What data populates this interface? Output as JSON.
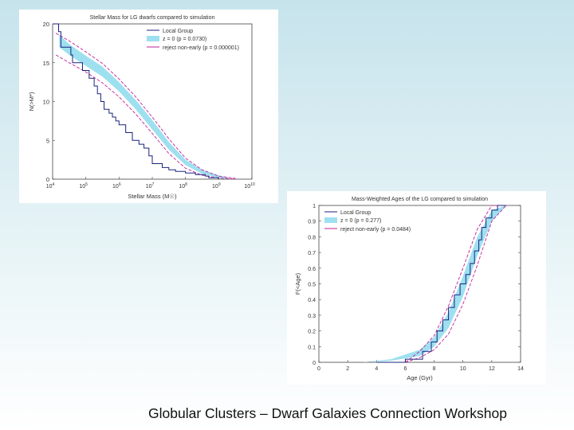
{
  "footer": "Globular Clusters – Dwarf Galaxies Connection Workshop",
  "colors": {
    "local_group": "#1a237e",
    "band": "#9ee0f0",
    "reject": "#c0209a",
    "axis": "#444444"
  },
  "chart_data": [
    {
      "type": "line",
      "title": "Stellar Mass for LG dwarfs compared to simulation",
      "xlabel": "Stellar Mass (M☉)",
      "ylabel": "N(>M*)",
      "x_scale": "log",
      "xlim": [
        10000,
        10000000000
      ],
      "ylim": [
        0,
        20
      ],
      "xticks": [
        4,
        5,
        6,
        7,
        8,
        9,
        10
      ],
      "yticks": [
        0,
        5,
        10,
        15,
        20
      ],
      "legend": {
        "placement": "top-right",
        "entries": [
          "Local Group",
          "z = 0 (p = 0.0730)",
          "reject non-early (p = 0.000001)"
        ]
      },
      "series": [
        {
          "name": "Local Group",
          "log10_x": [
            4.0,
            4.18,
            4.25,
            4.55,
            4.6,
            4.9,
            5.1,
            5.25,
            5.35,
            5.45,
            5.55,
            5.7,
            5.8,
            5.9,
            6.0,
            6.2,
            6.4,
            6.6,
            6.75,
            6.9,
            7.0,
            7.3,
            7.5,
            7.7,
            8.0,
            8.3,
            8.6,
            8.7,
            9.0
          ],
          "y": [
            20,
            19,
            17,
            16,
            15,
            14,
            13,
            12,
            11,
            10,
            9,
            8.5,
            8,
            7.5,
            7,
            6,
            5,
            4.5,
            4,
            3,
            2,
            1.5,
            1.2,
            1,
            0.8,
            0.6,
            0.4,
            0.2,
            0
          ]
        },
        {
          "name": "z = 0 (p = 0.0730)",
          "log10_x": [
            4.2,
            4.5,
            5.0,
            5.5,
            6.0,
            6.5,
            7.0,
            7.5,
            8.0,
            8.5,
            9.0,
            9.3
          ],
          "y_low": [
            17.0,
            16.0,
            14.6,
            13.2,
            11.3,
            9.0,
            6.4,
            3.8,
            1.8,
            0.7,
            0.2,
            0.05
          ],
          "y_high": [
            18.6,
            17.4,
            15.9,
            14.5,
            12.5,
            10.2,
            7.6,
            4.8,
            2.5,
            1.2,
            0.5,
            0.2
          ]
        },
        {
          "name": "reject non-early (p = 0.000001)",
          "log10_x": [
            4.1,
            4.5,
            5.0,
            5.5,
            6.0,
            6.5,
            7.0,
            7.5,
            8.0,
            8.5,
            9.0,
            9.5
          ],
          "y_low": [
            16.0,
            15.0,
            13.8,
            12.4,
            10.6,
            8.4,
            5.9,
            3.3,
            1.4,
            0.5,
            0.15,
            0.0
          ],
          "y_high": [
            18.8,
            17.8,
            16.4,
            14.9,
            12.9,
            10.6,
            8.0,
            5.2,
            2.7,
            1.2,
            0.4,
            0.1
          ]
        }
      ]
    },
    {
      "type": "line",
      "title": "Mass-Weighted Ages of the LG compared to simulation",
      "xlabel": "Age (Gyr)",
      "ylabel": "F(<Age)",
      "xlim": [
        0,
        14
      ],
      "ylim": [
        0,
        1
      ],
      "xticks": [
        0,
        2,
        4,
        6,
        8,
        10,
        12,
        14
      ],
      "yticks": [
        0,
        0.1,
        0.2,
        0.3,
        0.4,
        0.5,
        0.6,
        0.7,
        0.8,
        0.9,
        1
      ],
      "legend": {
        "placement": "top-left",
        "entries": [
          "Local Group",
          "z = 0 (p = 0.277)",
          "reject non-early (p = 0.0484)"
        ]
      },
      "series": [
        {
          "name": "Local Group",
          "x": [
            4.0,
            6.0,
            7.2,
            7.8,
            8.2,
            8.6,
            9.0,
            9.4,
            9.8,
            10.2,
            10.5,
            10.8,
            11.1,
            11.3,
            11.6,
            12.0,
            12.4,
            13.0
          ],
          "y": [
            0.0,
            0.02,
            0.07,
            0.13,
            0.2,
            0.27,
            0.35,
            0.43,
            0.5,
            0.56,
            0.63,
            0.71,
            0.78,
            0.86,
            0.92,
            0.97,
            1.0,
            1.0
          ]
        },
        {
          "name": "z = 0 (p = 0.277)",
          "x": [
            3.0,
            5.0,
            7.0,
            8.0,
            9.0,
            10.0,
            11.0,
            12.0,
            13.0
          ],
          "y_low": [
            0.0,
            0.01,
            0.04,
            0.1,
            0.22,
            0.42,
            0.68,
            0.9,
            1.0
          ],
          "y_high": [
            0.0,
            0.02,
            0.08,
            0.16,
            0.32,
            0.55,
            0.8,
            0.97,
            1.0
          ]
        },
        {
          "name": "reject non-early (p = 0.0484)",
          "x": [
            6.0,
            7.0,
            8.0,
            9.0,
            10.0,
            11.0,
            12.0,
            13.0
          ],
          "y_low": [
            0.0,
            0.03,
            0.08,
            0.18,
            0.37,
            0.62,
            0.9,
            1.0
          ],
          "y_high": [
            0.0,
            0.07,
            0.17,
            0.36,
            0.6,
            0.85,
            1.0,
            1.0
          ]
        }
      ]
    }
  ]
}
